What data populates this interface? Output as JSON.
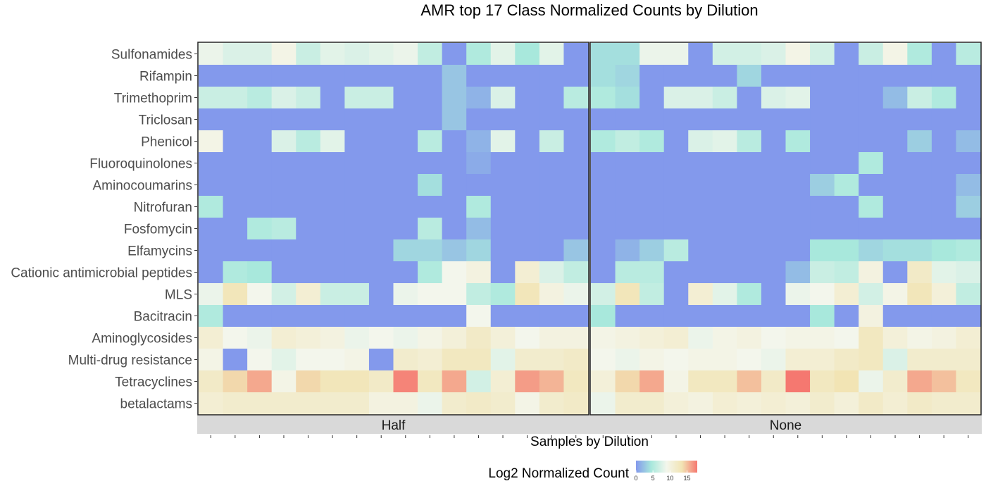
{
  "chart_data": {
    "type": "heatmap",
    "title": "AMR top 17 Class Normalized Counts by Dilution",
    "xlabel": "Samples by Dilution",
    "legend": {
      "title": "Log2 Normalized Count",
      "ticks": [
        0,
        5,
        10,
        15
      ],
      "range": [
        0,
        18
      ],
      "colors": [
        "#8399ec",
        "#a8e8dc",
        "#f3f6ec",
        "#f2e4b4",
        "#f57870"
      ],
      "placement": "bottom"
    },
    "rows": [
      "Sulfonamides",
      "Rifampin",
      "Trimethoprim",
      "Triclosan",
      "Phenicol",
      "Fluoroquinolones",
      "Aminocoumarins",
      "Nitrofuran",
      "Fosfomycin",
      "Elfamycins",
      "Cationic antimicrobial peptides",
      "MLS",
      "Bacitracin",
      "Aminoglycosides",
      "Multi-drug resistance",
      "Tetracyclines",
      "betalactams"
    ],
    "facets": [
      {
        "name": "Half",
        "values": [
          [
            8.5,
            7.5,
            7.5,
            9.5,
            6.5,
            8,
            7.5,
            8,
            8.5,
            6,
            0,
            5,
            8,
            4.5,
            8,
            0
          ],
          [
            0,
            0,
            0,
            0,
            0,
            0,
            0,
            0,
            0,
            0,
            2.5,
            0,
            0,
            0,
            0,
            0
          ],
          [
            6.5,
            6.5,
            5.5,
            7.5,
            6.5,
            0,
            6.5,
            6.5,
            0,
            0,
            2.5,
            1.5,
            7.5,
            0,
            0,
            5.5
          ],
          [
            0,
            0,
            0,
            0,
            0,
            0,
            0,
            0,
            0,
            0,
            2.5,
            0,
            0,
            0,
            0,
            0
          ],
          [
            9.5,
            0,
            0,
            7.5,
            5.5,
            8,
            0,
            0,
            0,
            5.5,
            0,
            1.5,
            8,
            0,
            6.5,
            0
          ],
          [
            0,
            0,
            0,
            0,
            0,
            0,
            0,
            0,
            0,
            0,
            0,
            1,
            0,
            0,
            0,
            0
          ],
          [
            0,
            0,
            0,
            0,
            0,
            0,
            0,
            0,
            0,
            4,
            0,
            0,
            0,
            0,
            0,
            0
          ],
          [
            5,
            0,
            0,
            0,
            0,
            0,
            0,
            0,
            0,
            0,
            0,
            5,
            0,
            0,
            0,
            0
          ],
          [
            0,
            0,
            5,
            5.5,
            0,
            0,
            0,
            0,
            0,
            5.5,
            0,
            2,
            0,
            0,
            0,
            0
          ],
          [
            0,
            0,
            0,
            0,
            0,
            0,
            0,
            0,
            3.5,
            3.5,
            2.5,
            3.5,
            0,
            0,
            0,
            2.5
          ],
          [
            0,
            5,
            4.5,
            0,
            0,
            0,
            0,
            0,
            0,
            5,
            9,
            10,
            0,
            11,
            7.5,
            6
          ],
          [
            8.5,
            13,
            9,
            7,
            11,
            6.5,
            6.5,
            0,
            8.5,
            9,
            9,
            6,
            5,
            13,
            10,
            8.5
          ],
          [
            5,
            0,
            0,
            0,
            0,
            0,
            0,
            0,
            0,
            0,
            0,
            9,
            0,
            0,
            0,
            0
          ],
          [
            11,
            9,
            8.5,
            11,
            10.5,
            10,
            8.5,
            9,
            8.5,
            9.5,
            10.5,
            12,
            10.5,
            9,
            10,
            10
          ],
          [
            9.5,
            0,
            9,
            8,
            9,
            9,
            9.5,
            0,
            11.5,
            11,
            12.5,
            12.5,
            8,
            11.5,
            11.5,
            12
          ],
          [
            12,
            14,
            16,
            9.5,
            14,
            13,
            13,
            12,
            17.5,
            12.5,
            16,
            7,
            11,
            16.5,
            15.5,
            12.5
          ],
          [
            11,
            11.5,
            11.5,
            11.5,
            11.5,
            11.5,
            11.5,
            10,
            10,
            8.5,
            11.5,
            12,
            11.5,
            9.5,
            11.5,
            12
          ]
        ]
      },
      {
        "name": "None",
        "values": [
          [
            4,
            4,
            8.5,
            8.5,
            0,
            7,
            7,
            7.5,
            9.5,
            7,
            0,
            6.5,
            9.5,
            5,
            0,
            5.5
          ],
          [
            4,
            3.5,
            0,
            0,
            0,
            0,
            3.5,
            0,
            0,
            0,
            0,
            0,
            0,
            0,
            0,
            0
          ],
          [
            5,
            4,
            0,
            7.5,
            7.5,
            6.5,
            0,
            7.5,
            8,
            0,
            0,
            0,
            2,
            6.5,
            5,
            0
          ],
          [
            0,
            0,
            0,
            0,
            0,
            0,
            0,
            0,
            0,
            0,
            0,
            0,
            0,
            0,
            0,
            0
          ],
          [
            5,
            6,
            5,
            0,
            7.5,
            8,
            5.5,
            0,
            5,
            0,
            0,
            0,
            0,
            3,
            0,
            2
          ],
          [
            0,
            0,
            0,
            0,
            0,
            0,
            0,
            0,
            0,
            0,
            0,
            5,
            0,
            0,
            0,
            0
          ],
          [
            0,
            0,
            0,
            0,
            0,
            0,
            0,
            0,
            0,
            3,
            5,
            0,
            0,
            0,
            0,
            2
          ],
          [
            0,
            0,
            0,
            0,
            0,
            0,
            0,
            0,
            0,
            0,
            0,
            5,
            0,
            0,
            0,
            3
          ],
          [
            0,
            0,
            0,
            0,
            0,
            0,
            0,
            0,
            0,
            0,
            0,
            0,
            0,
            0,
            0,
            0
          ],
          [
            0,
            1.5,
            3,
            5.5,
            0,
            0,
            0,
            0,
            0,
            4.5,
            4.5,
            3.5,
            4,
            4,
            4.5,
            5
          ],
          [
            0,
            5.5,
            5.5,
            0,
            0,
            0,
            0,
            0,
            2,
            6.5,
            6,
            10,
            0,
            12,
            8,
            7.5
          ],
          [
            7,
            13,
            6,
            0,
            11,
            8,
            5,
            0,
            8.5,
            9,
            11,
            7,
            9.5,
            13,
            10.5,
            6
          ],
          [
            4.5,
            0,
            0,
            0,
            0,
            0,
            0,
            0,
            0,
            4.5,
            0,
            10,
            0,
            0,
            0,
            0
          ],
          [
            9.5,
            10,
            10.5,
            11,
            8.5,
            9.5,
            10,
            9,
            9.5,
            9.5,
            9,
            12.5,
            10.5,
            9.5,
            10,
            11
          ],
          [
            9,
            8.5,
            9.5,
            9,
            9.5,
            9.5,
            9,
            8.5,
            11,
            11,
            12,
            12.5,
            7.5,
            11.5,
            11.5,
            11.5
          ],
          [
            10.5,
            14,
            16,
            9.5,
            12.5,
            12.5,
            15,
            12,
            18,
            12.5,
            13.5,
            8.5,
            11.5,
            16,
            15,
            12.5
          ],
          [
            8.5,
            11.5,
            11.5,
            10.5,
            10,
            11,
            10.5,
            11,
            10.5,
            11.5,
            10.5,
            12,
            11,
            12,
            11.5,
            11.5
          ]
        ]
      }
    ]
  }
}
